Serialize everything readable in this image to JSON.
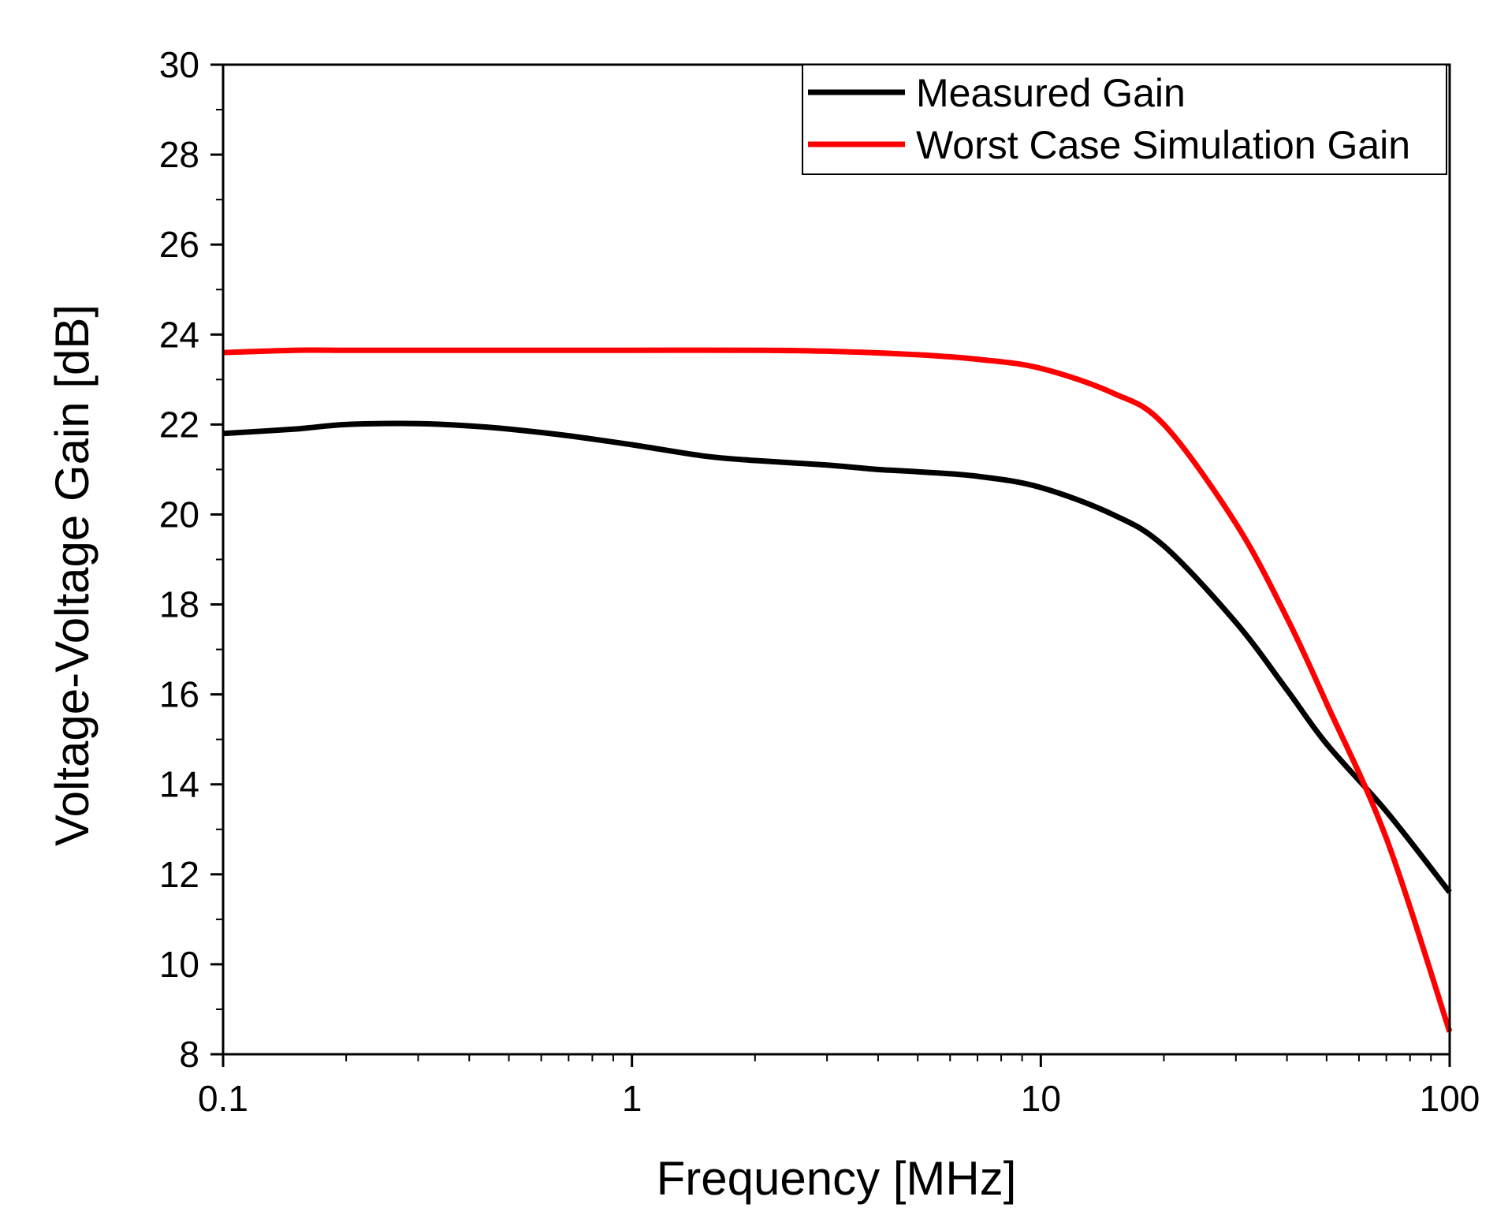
{
  "chart_data": {
    "type": "line",
    "title": "",
    "xlabel": "Frequency [MHz]",
    "ylabel": "Voltage-Voltage Gain [dB]",
    "xscale": "log",
    "xlim": [
      0.1,
      100
    ],
    "ylim": [
      8,
      30
    ],
    "grid": false,
    "legend_position": "top-right",
    "x_ticks": [
      {
        "value": 0.1,
        "label": "0.1"
      },
      {
        "value": 1,
        "label": "1"
      },
      {
        "value": 10,
        "label": "10"
      },
      {
        "value": 100,
        "label": "100"
      }
    ],
    "y_ticks": [
      {
        "value": 8,
        "label": "8"
      },
      {
        "value": 10,
        "label": "10"
      },
      {
        "value": 12,
        "label": "12"
      },
      {
        "value": 14,
        "label": "14"
      },
      {
        "value": 16,
        "label": "16"
      },
      {
        "value": 18,
        "label": "18"
      },
      {
        "value": 20,
        "label": "20"
      },
      {
        "value": 22,
        "label": "22"
      },
      {
        "value": 24,
        "label": "24"
      },
      {
        "value": 26,
        "label": "26"
      },
      {
        "value": 28,
        "label": "28"
      },
      {
        "value": 30,
        "label": "30"
      }
    ],
    "series": [
      {
        "name": "Measured Gain",
        "color": "#000000",
        "x": [
          0.1,
          0.15,
          0.2,
          0.3,
          0.4,
          0.5,
          0.7,
          1,
          1.5,
          2,
          3,
          4,
          5,
          7,
          10,
          15,
          20,
          30,
          40,
          50,
          70,
          100
        ],
        "y": [
          21.8,
          21.9,
          22.0,
          22.02,
          21.97,
          21.9,
          21.75,
          21.55,
          21.3,
          21.2,
          21.1,
          21.0,
          20.95,
          20.85,
          20.6,
          20.0,
          19.3,
          17.6,
          16.1,
          14.9,
          13.4,
          11.6
        ]
      },
      {
        "name": "Worst Case Simulation Gain",
        "color": "#ff0000",
        "x": [
          0.1,
          0.15,
          0.2,
          0.3,
          0.5,
          1,
          2,
          3,
          5,
          7,
          10,
          15,
          20,
          30,
          40,
          50,
          70,
          100
        ],
        "y": [
          23.6,
          23.65,
          23.65,
          23.65,
          23.65,
          23.65,
          23.65,
          23.63,
          23.55,
          23.45,
          23.25,
          22.7,
          22.0,
          19.8,
          17.7,
          15.8,
          12.8,
          8.5
        ]
      }
    ]
  }
}
